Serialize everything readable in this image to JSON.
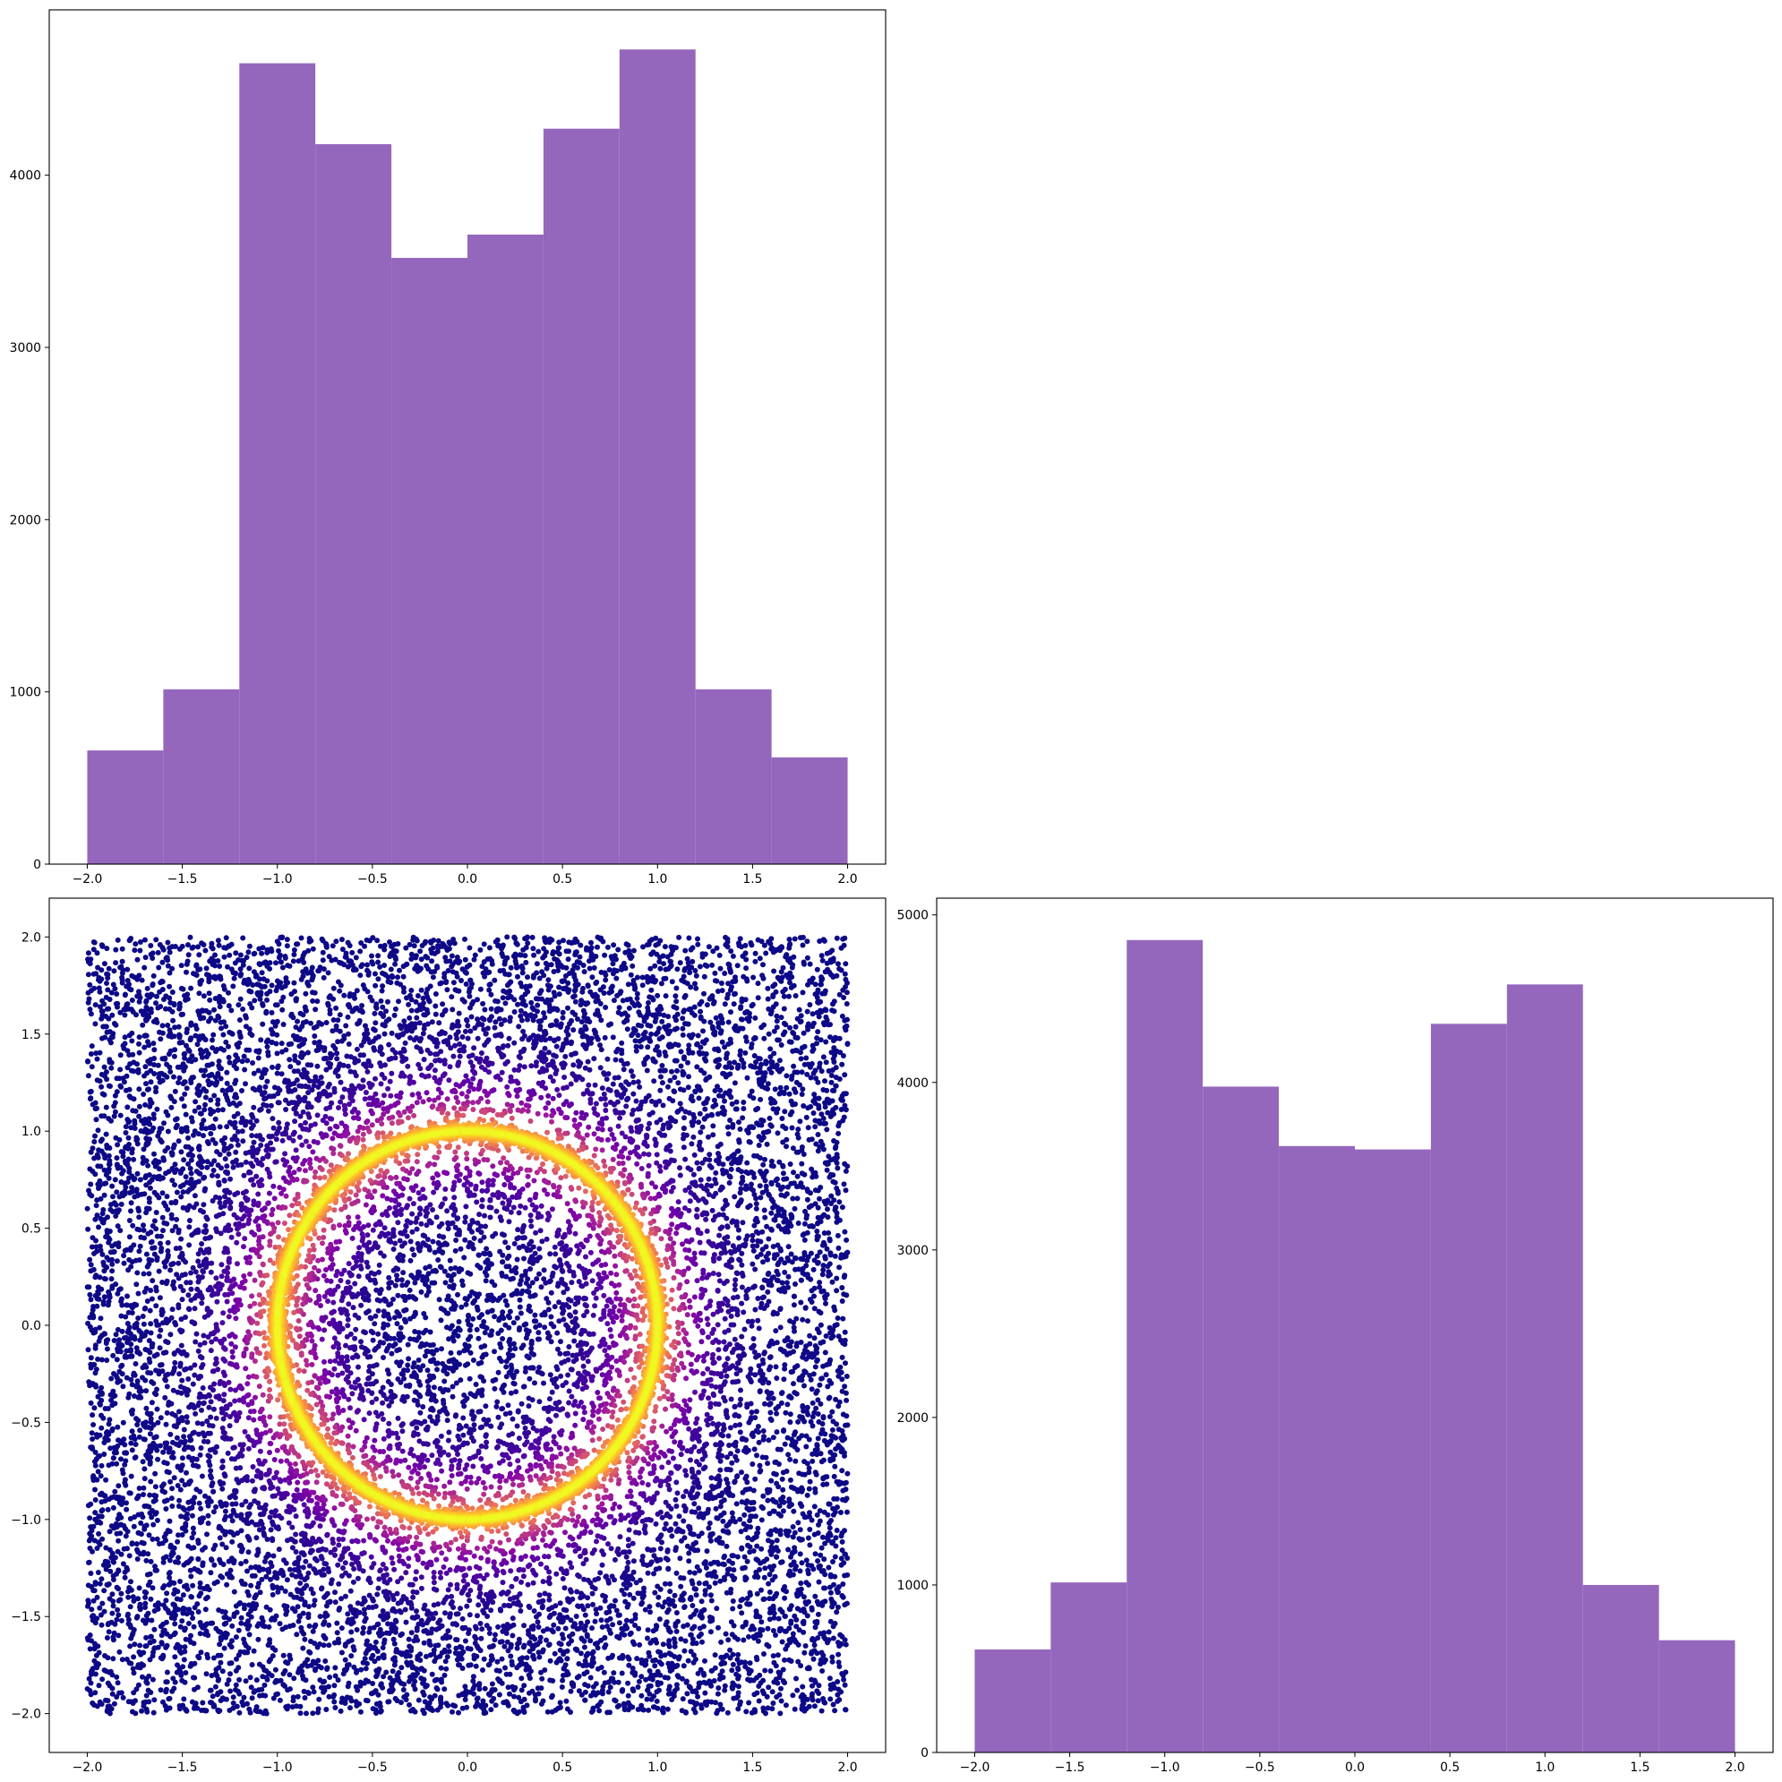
{
  "colors": {
    "bar_fill": "#9467bd",
    "axes_edge": "#000000",
    "scatter_colormap": "plasma"
  },
  "chart_data": [
    {
      "id": "top-left-histogram",
      "type": "bar",
      "histogram": true,
      "bin_edges": [
        -2.0,
        -1.6,
        -1.2,
        -0.8,
        -0.4,
        0.0,
        0.4,
        0.8,
        1.2,
        1.6,
        2.0
      ],
      "values": [
        660,
        1015,
        4650,
        4180,
        3520,
        3655,
        4270,
        4730,
        1015,
        620
      ],
      "xlim": [
        -2.2,
        2.2
      ],
      "ylim": [
        0,
        4960
      ],
      "xticks": [
        -2.0,
        -1.5,
        -1.0,
        -0.5,
        0.0,
        0.5,
        1.0,
        1.5,
        2.0
      ],
      "xtick_labels": [
        "−2.0",
        "−1.5",
        "−1.0",
        "−0.5",
        "0.0",
        "0.5",
        "1.0",
        "1.5",
        "2.0"
      ],
      "yticks": [
        0,
        1000,
        2000,
        3000,
        4000
      ],
      "ytick_labels": [
        "0",
        "1000",
        "2000",
        "3000",
        "4000"
      ],
      "grid": false,
      "color": "#9467bd"
    },
    {
      "id": "bottom-left-scatter",
      "type": "scatter",
      "description_of_data": "uniform points in [-2,2]x[-2,2], colored by density; dense bright ring at radius 1",
      "points_count": 14000,
      "ring_radius": 1.0,
      "x_range": [
        -2.0,
        2.0
      ],
      "y_range": [
        -2.0,
        2.0
      ],
      "xlim": [
        -2.2,
        2.2
      ],
      "ylim": [
        -2.2,
        2.2
      ],
      "xticks": [
        -2.0,
        -1.5,
        -1.0,
        -0.5,
        0.0,
        0.5,
        1.0,
        1.5,
        2.0
      ],
      "xtick_labels": [
        "−2.0",
        "−1.5",
        "−1.0",
        "−0.5",
        "0.0",
        "0.5",
        "1.0",
        "1.5",
        "2.0"
      ],
      "yticks": [
        -2.0,
        -1.5,
        -1.0,
        -0.5,
        0.0,
        0.5,
        1.0,
        1.5,
        2.0
      ],
      "ytick_labels": [
        "−2.0",
        "−1.5",
        "−1.0",
        "−0.5",
        "0.0",
        "0.5",
        "1.0",
        "1.5",
        "2.0"
      ],
      "colormap": "plasma",
      "grid": false
    },
    {
      "id": "bottom-right-histogram",
      "type": "bar",
      "histogram": true,
      "bin_edges": [
        -2.0,
        -1.6,
        -1.2,
        -0.8,
        -0.4,
        0.0,
        0.4,
        0.8,
        1.2,
        1.6,
        2.0
      ],
      "values": [
        615,
        1015,
        4850,
        3975,
        3620,
        3600,
        4350,
        4585,
        1000,
        670
      ],
      "xlim": [
        -2.2,
        2.2
      ],
      "ylim": [
        0,
        5100
      ],
      "xticks": [
        -2.0,
        -1.5,
        -1.0,
        -0.5,
        0.0,
        0.5,
        1.0,
        1.5,
        2.0
      ],
      "xtick_labels": [
        "−2.0",
        "−1.5",
        "−1.0",
        "−0.5",
        "0.0",
        "0.5",
        "1.0",
        "1.5",
        "2.0"
      ],
      "yticks": [
        0,
        1000,
        2000,
        3000,
        4000,
        5000
      ],
      "ytick_labels": [
        "0",
        "1000",
        "2000",
        "3000",
        "4000",
        "5000"
      ],
      "grid": false,
      "color": "#9467bd"
    }
  ]
}
